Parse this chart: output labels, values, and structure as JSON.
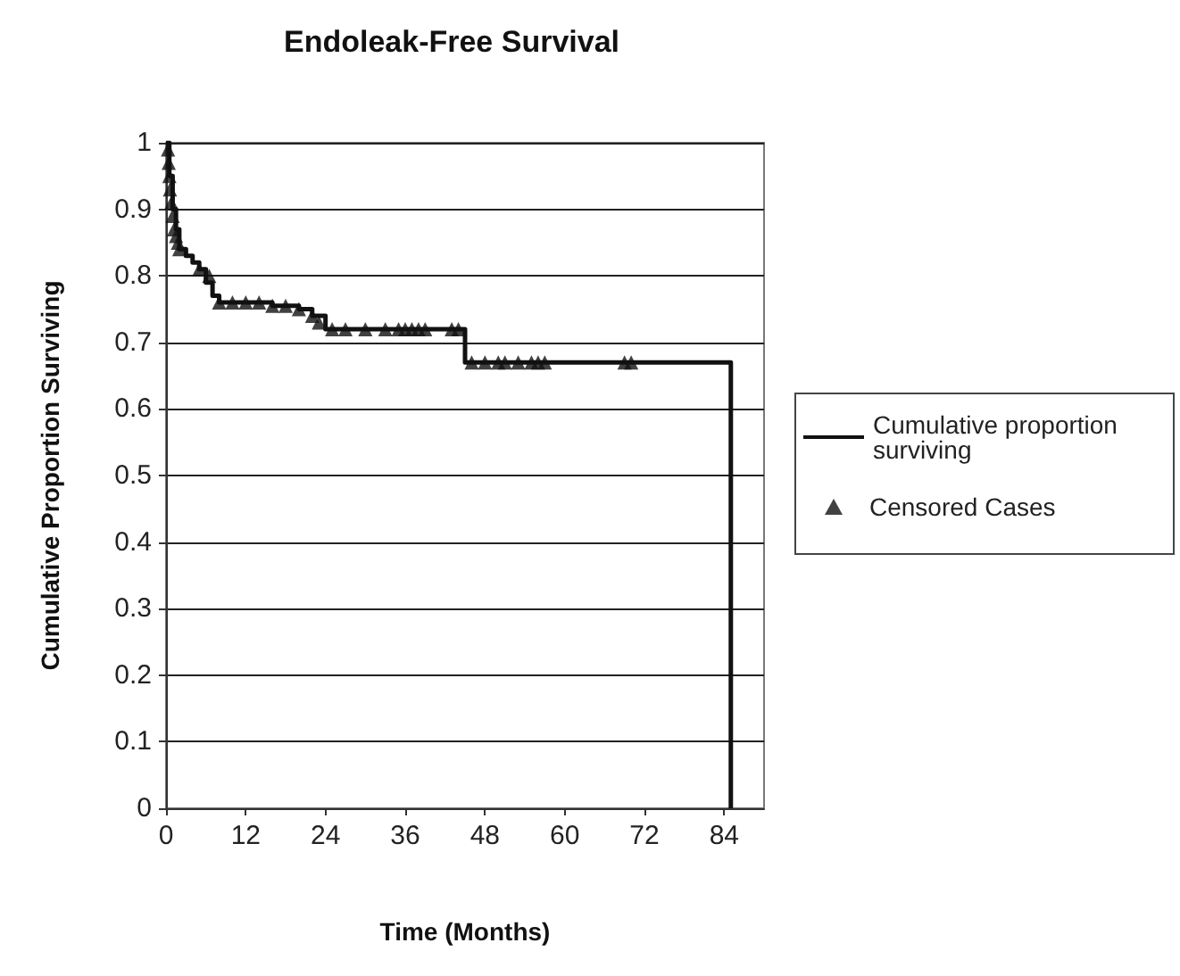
{
  "chart_data": {
    "type": "step",
    "title": "Endoleak-Free Survival",
    "xlabel": "Time (Months)",
    "ylabel": "Cumulative Proportion Surviving",
    "xlim": [
      0,
      90
    ],
    "xticks": [
      0,
      12,
      24,
      36,
      48,
      60,
      72,
      84
    ],
    "ylim": [
      0,
      1
    ],
    "yticks": [
      0,
      0.1,
      0.2,
      0.3,
      0.4,
      0.5,
      0.6,
      0.7,
      0.8,
      0.9,
      1
    ],
    "grid": "y",
    "legend": "right",
    "series": [
      {
        "name": "Cumulative proportion surviving",
        "color": "#111111",
        "marker": "none",
        "line_style": "solid",
        "x": [
          0,
          0.5,
          1,
          1.5,
          2,
          3,
          4,
          5,
          6,
          7,
          8,
          12,
          16,
          20,
          22,
          24,
          45,
          85,
          85
        ],
        "values": [
          1,
          0.95,
          0.9,
          0.87,
          0.84,
          0.83,
          0.82,
          0.81,
          0.79,
          0.77,
          0.76,
          0.76,
          0.755,
          0.75,
          0.74,
          0.72,
          0.67,
          0.67,
          0
        ]
      },
      {
        "name": "Censored Cases",
        "type": "scatter",
        "color": "#111111",
        "marker": "triangle",
        "x": [
          0.3,
          0.4,
          0.5,
          0.6,
          0.8,
          1,
          1.2,
          1.5,
          1.8,
          2,
          5,
          6.5,
          8,
          10,
          12,
          14,
          16,
          18,
          20,
          22,
          23,
          25,
          27,
          30,
          33,
          35,
          36,
          37,
          38,
          39,
          43,
          44,
          46,
          48,
          50,
          51,
          53,
          55,
          56,
          57,
          69,
          70
        ],
        "values": [
          0.99,
          0.97,
          0.95,
          0.93,
          0.91,
          0.89,
          0.87,
          0.86,
          0.85,
          0.84,
          0.81,
          0.8,
          0.76,
          0.76,
          0.76,
          0.76,
          0.755,
          0.755,
          0.75,
          0.74,
          0.73,
          0.72,
          0.72,
          0.72,
          0.72,
          0.72,
          0.72,
          0.72,
          0.72,
          0.72,
          0.72,
          0.72,
          0.67,
          0.67,
          0.67,
          0.67,
          0.67,
          0.67,
          0.67,
          0.67,
          0.67,
          0.67
        ]
      }
    ]
  }
}
